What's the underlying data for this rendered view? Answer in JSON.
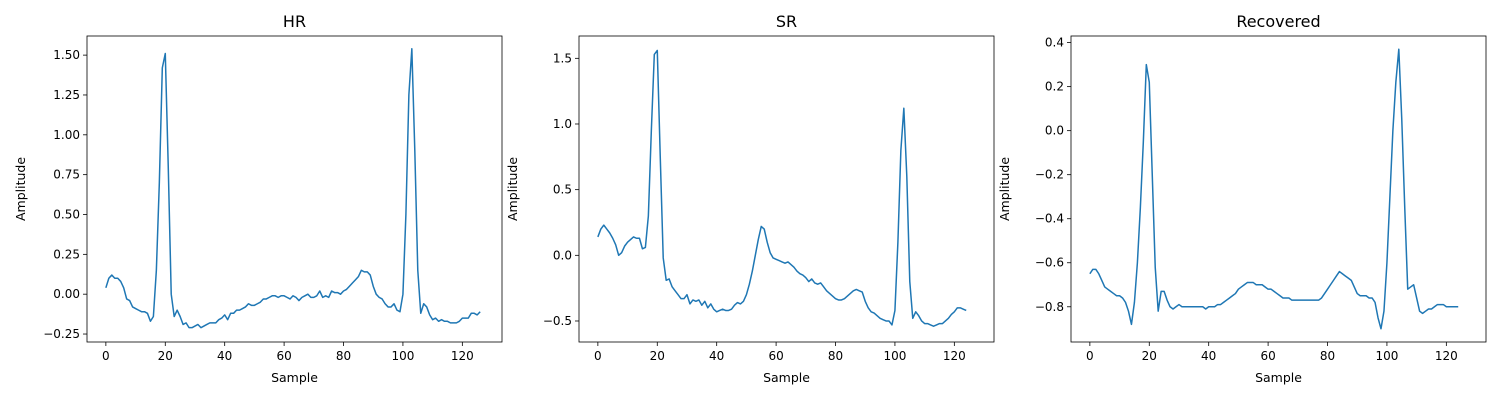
{
  "chart_data": [
    {
      "type": "line",
      "title": "HR",
      "xlabel": "Sample",
      "ylabel": "Amplitude",
      "xlim": [
        -6.35,
        133.35
      ],
      "ylim": [
        -0.3,
        1.62
      ],
      "xticks": [
        0,
        20,
        40,
        60,
        80,
        100,
        120
      ],
      "yticks": [
        -0.25,
        0.0,
        0.25,
        0.5,
        0.75,
        1.0,
        1.25,
        1.5
      ],
      "ytick_labels": [
        "−0.25",
        "0.00",
        "0.25",
        "0.50",
        "0.75",
        "1.00",
        "1.25",
        "1.50"
      ],
      "color": "#1f77b4",
      "y": [
        0.04,
        0.1,
        0.12,
        0.1,
        0.1,
        0.08,
        0.04,
        -0.03,
        -0.04,
        -0.08,
        -0.09,
        -0.1,
        -0.11,
        -0.11,
        -0.12,
        -0.17,
        -0.14,
        0.15,
        0.7,
        1.42,
        1.51,
        0.8,
        0.0,
        -0.14,
        -0.1,
        -0.14,
        -0.19,
        -0.18,
        -0.21,
        -0.21,
        -0.2,
        -0.19,
        -0.21,
        -0.2,
        -0.19,
        -0.18,
        -0.18,
        -0.18,
        -0.16,
        -0.15,
        -0.13,
        -0.16,
        -0.12,
        -0.12,
        -0.1,
        -0.1,
        -0.09,
        -0.08,
        -0.06,
        -0.07,
        -0.07,
        -0.06,
        -0.05,
        -0.03,
        -0.03,
        -0.02,
        -0.01,
        -0.01,
        -0.02,
        -0.01,
        -0.01,
        -0.02,
        -0.03,
        -0.01,
        -0.02,
        -0.04,
        -0.02,
        -0.01,
        0.0,
        -0.02,
        -0.02,
        -0.01,
        0.02,
        -0.02,
        -0.01,
        -0.02,
        0.02,
        0.01,
        0.01,
        0.0,
        0.02,
        0.03,
        0.05,
        0.07,
        0.09,
        0.11,
        0.15,
        0.14,
        0.14,
        0.12,
        0.05,
        0.0,
        -0.02,
        -0.03,
        -0.06,
        -0.08,
        -0.08,
        -0.06,
        -0.1,
        -0.11,
        0.0,
        0.5,
        1.25,
        1.54,
        0.9,
        0.15,
        -0.12,
        -0.06,
        -0.08,
        -0.13,
        -0.16,
        -0.15,
        -0.17,
        -0.16,
        -0.17,
        -0.17,
        -0.18,
        -0.18,
        -0.18,
        -0.17,
        -0.15,
        -0.15,
        -0.15,
        -0.12,
        -0.12,
        -0.13,
        -0.11
      ]
    },
    {
      "type": "line",
      "title": "SR",
      "xlabel": "Sample",
      "ylabel": "Amplitude",
      "xlim": [
        -6.35,
        133.35
      ],
      "ylim": [
        -0.66,
        1.67
      ],
      "xticks": [
        0,
        20,
        40,
        60,
        80,
        100,
        120
      ],
      "yticks": [
        -0.5,
        0.0,
        0.5,
        1.0,
        1.5
      ],
      "ytick_labels": [
        "−0.5",
        "0.0",
        "0.5",
        "1.0",
        "1.5"
      ],
      "color": "#1f77b4",
      "y": [
        0.14,
        0.2,
        0.23,
        0.2,
        0.17,
        0.13,
        0.08,
        0.0,
        0.02,
        0.07,
        0.1,
        0.12,
        0.14,
        0.13,
        0.13,
        0.05,
        0.06,
        0.3,
        0.95,
        1.53,
        1.56,
        0.75,
        -0.02,
        -0.19,
        -0.18,
        -0.24,
        -0.27,
        -0.3,
        -0.33,
        -0.33,
        -0.3,
        -0.37,
        -0.34,
        -0.35,
        -0.34,
        -0.38,
        -0.35,
        -0.4,
        -0.37,
        -0.41,
        -0.43,
        -0.42,
        -0.41,
        -0.42,
        -0.42,
        -0.41,
        -0.38,
        -0.36,
        -0.37,
        -0.35,
        -0.3,
        -0.22,
        -0.12,
        0.0,
        0.12,
        0.22,
        0.2,
        0.1,
        0.02,
        -0.02,
        -0.03,
        -0.04,
        -0.05,
        -0.06,
        -0.05,
        -0.07,
        -0.09,
        -0.12,
        -0.14,
        -0.15,
        -0.17,
        -0.2,
        -0.18,
        -0.21,
        -0.22,
        -0.21,
        -0.24,
        -0.27,
        -0.29,
        -0.31,
        -0.33,
        -0.34,
        -0.34,
        -0.33,
        -0.31,
        -0.29,
        -0.27,
        -0.26,
        -0.27,
        -0.28,
        -0.35,
        -0.4,
        -0.43,
        -0.44,
        -0.46,
        -0.48,
        -0.49,
        -0.5,
        -0.5,
        -0.53,
        -0.42,
        0.1,
        0.8,
        1.12,
        0.6,
        -0.2,
        -0.48,
        -0.43,
        -0.46,
        -0.5,
        -0.52,
        -0.52,
        -0.53,
        -0.54,
        -0.53,
        -0.52,
        -0.52,
        -0.5,
        -0.48,
        -0.45,
        -0.43,
        -0.4,
        -0.4,
        -0.41,
        -0.42
      ]
    },
    {
      "type": "line",
      "title": "Recovered",
      "xlabel": "Sample",
      "ylabel": "Amplitude",
      "xlim": [
        -6.35,
        133.35
      ],
      "ylim": [
        -0.96,
        0.43
      ],
      "xticks": [
        0,
        20,
        40,
        60,
        80,
        100,
        120
      ],
      "yticks": [
        -0.8,
        -0.6,
        -0.4,
        -0.2,
        0.0,
        0.2,
        0.4
      ],
      "ytick_labels": [
        "−0.8",
        "−0.6",
        "−0.4",
        "−0.2",
        "0.0",
        "0.2",
        "0.4"
      ],
      "color": "#1f77b4",
      "y": [
        -0.65,
        -0.63,
        -0.63,
        -0.65,
        -0.68,
        -0.71,
        -0.72,
        -0.73,
        -0.74,
        -0.75,
        -0.75,
        -0.76,
        -0.78,
        -0.82,
        -0.88,
        -0.78,
        -0.6,
        -0.35,
        -0.05,
        0.3,
        0.22,
        -0.2,
        -0.62,
        -0.82,
        -0.73,
        -0.73,
        -0.77,
        -0.8,
        -0.81,
        -0.8,
        -0.79,
        -0.8,
        -0.8,
        -0.8,
        -0.8,
        -0.8,
        -0.8,
        -0.8,
        -0.8,
        -0.81,
        -0.8,
        -0.8,
        -0.8,
        -0.79,
        -0.79,
        -0.78,
        -0.77,
        -0.76,
        -0.75,
        -0.74,
        -0.72,
        -0.71,
        -0.7,
        -0.69,
        -0.69,
        -0.69,
        -0.7,
        -0.7,
        -0.7,
        -0.71,
        -0.72,
        -0.72,
        -0.73,
        -0.74,
        -0.75,
        -0.76,
        -0.76,
        -0.76,
        -0.77,
        -0.77,
        -0.77,
        -0.77,
        -0.77,
        -0.77,
        -0.77,
        -0.77,
        -0.77,
        -0.77,
        -0.76,
        -0.74,
        -0.72,
        -0.7,
        -0.68,
        -0.66,
        -0.64,
        -0.65,
        -0.66,
        -0.67,
        -0.68,
        -0.71,
        -0.74,
        -0.75,
        -0.75,
        -0.75,
        -0.76,
        -0.76,
        -0.78,
        -0.85,
        -0.9,
        -0.82,
        -0.6,
        -0.3,
        0.0,
        0.22,
        0.37,
        0.05,
        -0.35,
        -0.72,
        -0.71,
        -0.7,
        -0.76,
        -0.82,
        -0.83,
        -0.82,
        -0.81,
        -0.81,
        -0.8,
        -0.79,
        -0.79,
        -0.79,
        -0.8,
        -0.8,
        -0.8,
        -0.8,
        -0.8
      ]
    }
  ]
}
